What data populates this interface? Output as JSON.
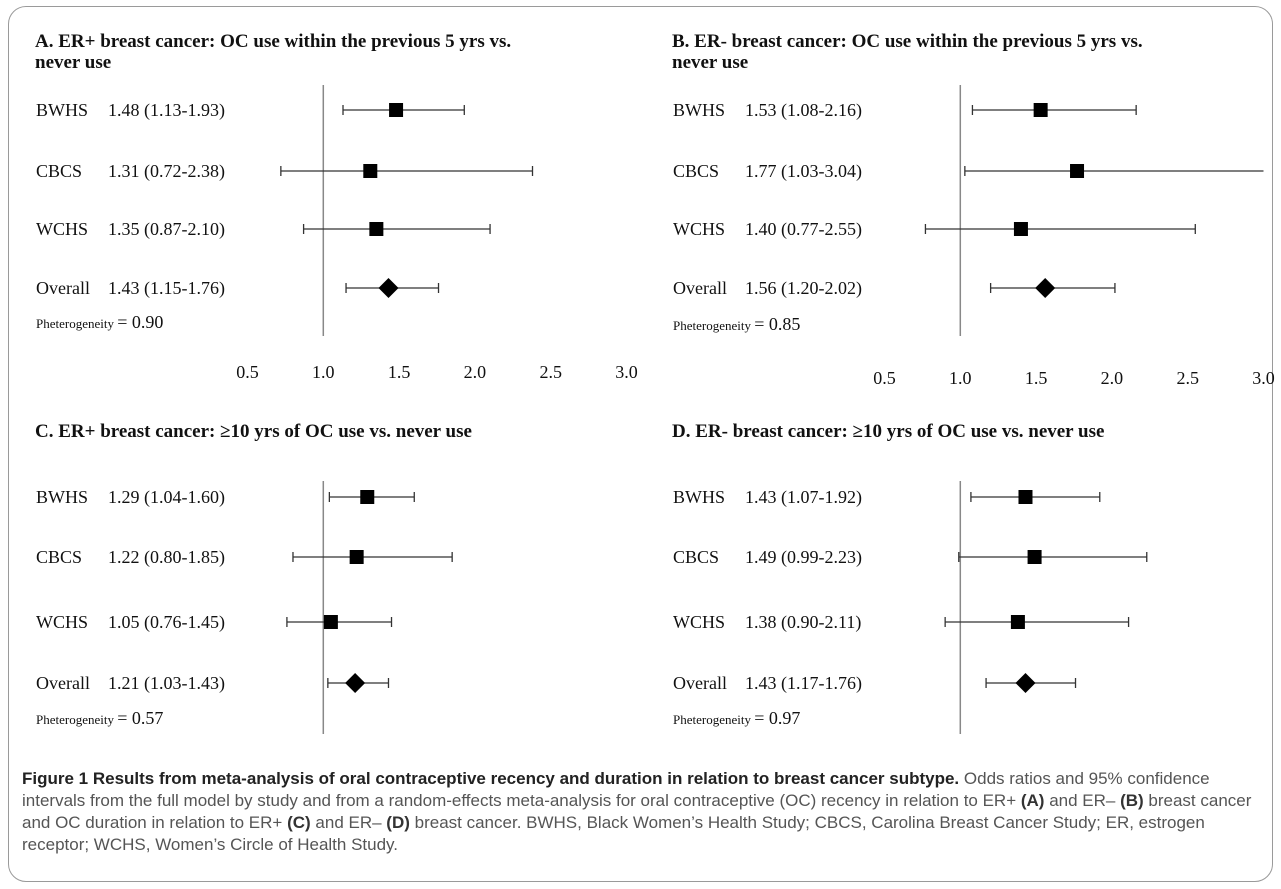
{
  "chart_data": [
    {
      "type": "forest",
      "title_lines": [
        "A. ER+ breast cancer: OC use within the previous 5 yrs vs.",
        "never use"
      ],
      "rows": [
        {
          "study": "BWHS",
          "label": "1.48 (1.13-1.93)",
          "or": 1.48,
          "lo": 1.13,
          "hi": 1.93,
          "marker": "square"
        },
        {
          "study": "CBCS",
          "label": "1.31 (0.72-2.38)",
          "or": 1.31,
          "lo": 0.72,
          "hi": 2.38,
          "marker": "square"
        },
        {
          "study": "WCHS",
          "label": "1.35 (0.87-2.10)",
          "or": 1.35,
          "lo": 0.87,
          "hi": 2.1,
          "marker": "square"
        },
        {
          "study": "Overall",
          "label": "1.43 (1.15-1.76)",
          "or": 1.43,
          "lo": 1.15,
          "hi": 1.76,
          "marker": "diamond"
        }
      ],
      "p_label": "Pheterogeneity",
      "p_value": "= 0.90",
      "xticks": [
        "0.5",
        "1.0",
        "1.5",
        "2.0",
        "2.5",
        "3.0"
      ],
      "xlim": [
        0.5,
        3.0
      ],
      "ref": 1.0
    },
    {
      "type": "forest",
      "title_lines": [
        "B. ER- breast cancer: OC use within the previous 5 yrs vs.",
        "never use"
      ],
      "rows": [
        {
          "study": "BWHS",
          "label": "1.53 (1.08-2.16)",
          "or": 1.53,
          "lo": 1.08,
          "hi": 2.16,
          "marker": "square"
        },
        {
          "study": "CBCS",
          "label": "1.77 (1.03-3.04)",
          "or": 1.77,
          "lo": 1.03,
          "hi": 3.04,
          "marker": "square"
        },
        {
          "study": "WCHS",
          "label": "1.40 (0.77-2.55)",
          "or": 1.4,
          "lo": 0.77,
          "hi": 2.55,
          "marker": "square"
        },
        {
          "study": "Overall",
          "label": "1.56 (1.20-2.02)",
          "or": 1.56,
          "lo": 1.2,
          "hi": 2.02,
          "marker": "diamond"
        }
      ],
      "p_label": "Pheterogeneity",
      "p_value": "= 0.85",
      "xticks": [
        "0.5",
        "1.0",
        "1.5",
        "2.0",
        "2.5",
        "3.0"
      ],
      "xlim": [
        0.5,
        3.0
      ],
      "ref": 1.0
    },
    {
      "type": "forest",
      "title_lines": [
        "C. ER+ breast cancer: ≥10 yrs of OC use vs. never use"
      ],
      "rows": [
        {
          "study": "BWHS",
          "label": "1.29 (1.04-1.60)",
          "or": 1.29,
          "lo": 1.04,
          "hi": 1.6,
          "marker": "square"
        },
        {
          "study": "CBCS",
          "label": "1.22 (0.80-1.85)",
          "or": 1.22,
          "lo": 0.8,
          "hi": 1.85,
          "marker": "square"
        },
        {
          "study": "WCHS",
          "label": "1.05 (0.76-1.45)",
          "or": 1.05,
          "lo": 0.76,
          "hi": 1.45,
          "marker": "square"
        },
        {
          "study": "Overall",
          "label": "1.21 (1.03-1.43)",
          "or": 1.21,
          "lo": 1.03,
          "hi": 1.43,
          "marker": "diamond"
        }
      ],
      "p_label": "Pheterogeneity",
      "p_value": "= 0.57",
      "xticks": [
        "0.5",
        "1.0",
        "1.5",
        "2.0",
        "2.5",
        "3.0"
      ],
      "xlim": [
        0.5,
        3.0
      ],
      "ref": 1.0
    },
    {
      "type": "forest",
      "title_lines": [
        "D. ER- breast cancer: ≥10 yrs of OC use vs. never use"
      ],
      "rows": [
        {
          "study": "BWHS",
          "label": "1.43 (1.07-1.92)",
          "or": 1.43,
          "lo": 1.07,
          "hi": 1.92,
          "marker": "square"
        },
        {
          "study": "CBCS",
          "label": "1.49 (0.99-2.23)",
          "or": 1.49,
          "lo": 0.99,
          "hi": 2.23,
          "marker": "square"
        },
        {
          "study": "WCHS",
          "label": "1.38 (0.90-2.11)",
          "or": 1.38,
          "lo": 0.9,
          "hi": 2.11,
          "marker": "square"
        },
        {
          "study": "Overall",
          "label": "1.43 (1.17-1.76)",
          "or": 1.43,
          "lo": 1.17,
          "hi": 1.76,
          "marker": "diamond"
        }
      ],
      "p_label": "Pheterogeneity",
      "p_value": "= 0.97",
      "xticks": [
        "0.5",
        "1.0",
        "1.5",
        "2.0",
        "2.5",
        "3.0"
      ],
      "xlim": [
        0.5,
        3.0
      ],
      "ref": 1.0
    }
  ],
  "caption": {
    "title": "Figure 1 Results from meta-analysis of oral contraceptive recency and duration in relation to breast cancer subtype.",
    "t1": " Odds ratios and 95% confidence intervals from the full model by study and from a random-effects meta-analysis for oral contraceptive (OC) recency in relation to ER+ ",
    "a": "(A)",
    "t2": " and ER– ",
    "b": "(B)",
    "t3": " breast cancer and OC duration in relation to ER+ ",
    "c": "(C)",
    "t4": " and ER– ",
    "d": "(D)",
    "t5": " breast cancer. BWHS, Black Women’s Health Study; CBCS, Carolina Breast Cancer Study; ER, estrogen receptor; WCHS, Women’s Circle of Health Study."
  }
}
